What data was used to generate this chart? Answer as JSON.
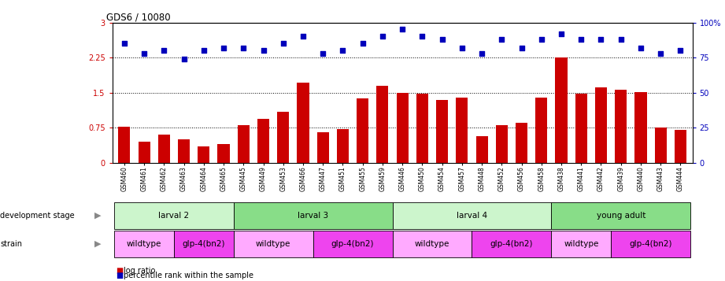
{
  "title": "GDS6 / 10080",
  "categories": [
    "GSM460",
    "GSM461",
    "GSM462",
    "GSM463",
    "GSM464",
    "GSM465",
    "GSM445",
    "GSM449",
    "GSM453",
    "GSM466",
    "GSM447",
    "GSM451",
    "GSM455",
    "GSM459",
    "GSM446",
    "GSM450",
    "GSM454",
    "GSM457",
    "GSM448",
    "GSM452",
    "GSM456",
    "GSM458",
    "GSM438",
    "GSM441",
    "GSM442",
    "GSM439",
    "GSM440",
    "GSM443",
    "GSM444"
  ],
  "log_ratio": [
    0.78,
    0.45,
    0.6,
    0.5,
    0.35,
    0.4,
    0.8,
    0.95,
    1.1,
    1.72,
    0.65,
    0.72,
    1.38,
    1.65,
    1.5,
    1.48,
    1.35,
    1.4,
    0.58,
    0.8,
    0.85,
    1.4,
    2.25,
    1.48,
    1.62,
    1.56,
    1.52,
    0.75,
    0.7
  ],
  "percentile": [
    85,
    78,
    80,
    74,
    80,
    82,
    82,
    80,
    85,
    90,
    78,
    80,
    85,
    90,
    95,
    90,
    88,
    82,
    78,
    88,
    82,
    88,
    92,
    88,
    88,
    88,
    82,
    78,
    80
  ],
  "ylim_left": [
    0,
    3
  ],
  "ylim_right": [
    0,
    100
  ],
  "yticks_left": [
    0,
    0.75,
    1.5,
    2.25,
    3
  ],
  "yticks_right": [
    0,
    25,
    50,
    75,
    100
  ],
  "ytick_labels_right": [
    "0",
    "25",
    "50",
    "75",
    "100%"
  ],
  "hlines": [
    0.75,
    1.5,
    2.25
  ],
  "bar_color": "#cc0000",
  "dot_color": "#0000bb",
  "development_stages": [
    {
      "label": "larval 2",
      "start": 0,
      "end": 5,
      "color": "#ccf5cc"
    },
    {
      "label": "larval 3",
      "start": 6,
      "end": 13,
      "color": "#88dd88"
    },
    {
      "label": "larval 4",
      "start": 14,
      "end": 21,
      "color": "#ccf5cc"
    },
    {
      "label": "young adult",
      "start": 22,
      "end": 28,
      "color": "#88dd88"
    }
  ],
  "strains": [
    {
      "label": "wildtype",
      "start": 0,
      "end": 2,
      "color": "#ffaaff"
    },
    {
      "label": "glp-4(bn2)",
      "start": 3,
      "end": 5,
      "color": "#ee44ee"
    },
    {
      "label": "wildtype",
      "start": 6,
      "end": 9,
      "color": "#ffaaff"
    },
    {
      "label": "glp-4(bn2)",
      "start": 10,
      "end": 13,
      "color": "#ee44ee"
    },
    {
      "label": "wildtype",
      "start": 14,
      "end": 17,
      "color": "#ffaaff"
    },
    {
      "label": "glp-4(bn2)",
      "start": 18,
      "end": 21,
      "color": "#ee44ee"
    },
    {
      "label": "wildtype",
      "start": 22,
      "end": 24,
      "color": "#ffaaff"
    },
    {
      "label": "glp-4(bn2)",
      "start": 25,
      "end": 28,
      "color": "#ee44ee"
    }
  ]
}
